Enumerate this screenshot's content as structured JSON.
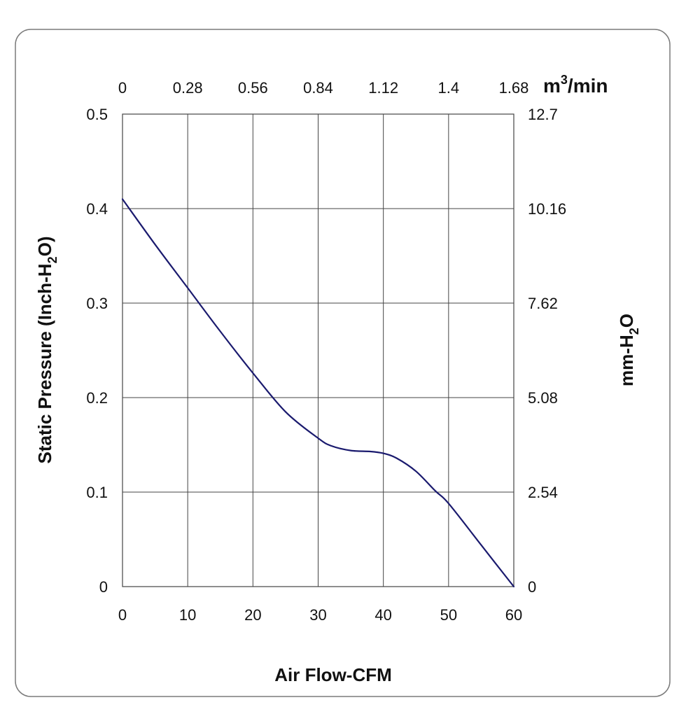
{
  "chart_data": {
    "type": "line",
    "colors": {
      "curve": "#1a1a6e",
      "grid": "#444444",
      "frame": "#7a7a7a"
    },
    "grid": true,
    "x": {
      "label": "Air Flow-CFM",
      "range": [
        0,
        60
      ],
      "ticks": [
        0,
        10,
        20,
        30,
        40,
        50,
        60
      ],
      "tick_labels": [
        "0",
        "10",
        "20",
        "30",
        "40",
        "50",
        "60"
      ]
    },
    "x2": {
      "label": "m³/min",
      "label_parts": [
        "m",
        "3",
        "/min"
      ],
      "range": [
        0,
        1.68
      ],
      "ticks": [
        0,
        0.28,
        0.56,
        0.84,
        1.12,
        1.4,
        1.68
      ],
      "tick_labels": [
        "0",
        "0.28",
        "0.56",
        "0.84",
        "1.12",
        "1.4",
        "1.68"
      ]
    },
    "y": {
      "label": "Static Pressure (Inch-H₂O)",
      "label_parts": [
        "Static Pressure (Inch-H",
        "2",
        "O)"
      ],
      "range": [
        0,
        0.5
      ],
      "ticks": [
        0,
        0.1,
        0.2,
        0.3,
        0.4,
        0.5
      ],
      "tick_labels": [
        "0",
        "0.1",
        "0.2",
        "0.3",
        "0.4",
        "0.5"
      ]
    },
    "y2": {
      "label": "mm-H₂O",
      "label_parts": [
        "mm-H",
        "2",
        "O"
      ],
      "range": [
        0,
        12.7
      ],
      "ticks": [
        0,
        2.54,
        5.08,
        7.62,
        10.16,
        12.7
      ],
      "tick_labels": [
        "0",
        "2.54",
        "5.08",
        "7.62",
        "10.16",
        "12.7"
      ]
    },
    "series": [
      {
        "x": [
          0,
          5,
          10,
          15,
          20,
          25,
          30,
          32,
          35,
          38,
          40,
          42,
          45,
          48,
          50,
          55,
          60
        ],
        "y": [
          0.41,
          0.362,
          0.316,
          0.27,
          0.226,
          0.185,
          0.157,
          0.149,
          0.144,
          0.143,
          0.141,
          0.136,
          0.122,
          0.101,
          0.088,
          0.044,
          0.0
        ]
      }
    ]
  }
}
